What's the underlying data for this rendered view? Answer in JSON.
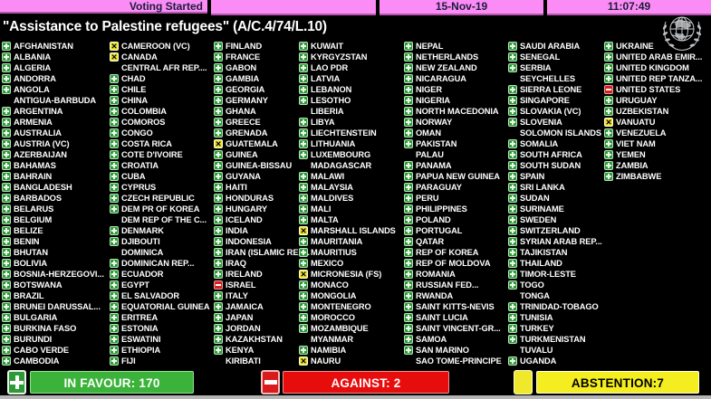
{
  "header": {
    "status": "Voting Started",
    "date": "15-Nov-19",
    "time": "11:07:49"
  },
  "title": "\"Assistance to Palestine refugees\" (A/C.4/74/L.10)",
  "icons": {
    "abstain_glyph": "✕"
  },
  "summary": {
    "in_favour_label": "IN FAVOUR: 170",
    "against_label": "AGAINST: 2",
    "abstention_label": "ABSTENTION:7",
    "in_favour_count": 170,
    "against_count": 2,
    "abstention_count": 7,
    "colors": {
      "favour": "#3bb33b",
      "against": "#e80d0d",
      "abstain": "#f4ee20",
      "header_pink": "#fb8cf5"
    }
  },
  "vote_codes": {
    "Y": "in favour",
    "N": "against",
    "A": "abstention",
    "-": "no vote"
  },
  "columns": [
    [
      {
        "name": "AFGHANISTAN",
        "vote": "Y"
      },
      {
        "name": "ALBANIA",
        "vote": "Y"
      },
      {
        "name": "ALGERIA",
        "vote": "Y"
      },
      {
        "name": "ANDORRA",
        "vote": "Y"
      },
      {
        "name": "ANGOLA",
        "vote": "Y"
      },
      {
        "name": "ANTIGUA-BARBUDA",
        "vote": "-"
      },
      {
        "name": "ARGENTINA",
        "vote": "Y"
      },
      {
        "name": "ARMENIA",
        "vote": "Y"
      },
      {
        "name": "AUSTRALIA",
        "vote": "Y"
      },
      {
        "name": "AUSTRIA (VC)",
        "vote": "Y"
      },
      {
        "name": "AZERBAIJAN",
        "vote": "Y"
      },
      {
        "name": "BAHAMAS",
        "vote": "Y"
      },
      {
        "name": "BAHRAIN",
        "vote": "Y"
      },
      {
        "name": "BANGLADESH",
        "vote": "Y"
      },
      {
        "name": "BARBADOS",
        "vote": "Y"
      },
      {
        "name": "BELARUS",
        "vote": "Y"
      },
      {
        "name": "BELGIUM",
        "vote": "Y"
      },
      {
        "name": "BELIZE",
        "vote": "Y"
      },
      {
        "name": "BENIN",
        "vote": "Y"
      },
      {
        "name": "BHUTAN",
        "vote": "Y"
      },
      {
        "name": "BOLIVIA",
        "vote": "Y"
      },
      {
        "name": "BOSNIA-HERZEGOVI...",
        "vote": "Y"
      },
      {
        "name": "BOTSWANA",
        "vote": "Y"
      },
      {
        "name": "BRAZIL",
        "vote": "Y"
      },
      {
        "name": "BRUNEI DARUSSAL...",
        "vote": "Y"
      },
      {
        "name": "BULGARIA",
        "vote": "Y"
      },
      {
        "name": "BURKINA FASO",
        "vote": "Y"
      },
      {
        "name": "BURUNDI",
        "vote": "Y"
      },
      {
        "name": "CABO VERDE",
        "vote": "Y"
      },
      {
        "name": "CAMBODIA",
        "vote": "Y"
      }
    ],
    [
      {
        "name": "CAMEROON (VC)",
        "vote": "A"
      },
      {
        "name": "CANADA",
        "vote": "A"
      },
      {
        "name": "CENTRAL AFR REP....",
        "vote": "-"
      },
      {
        "name": "CHAD",
        "vote": "Y"
      },
      {
        "name": "CHILE",
        "vote": "Y"
      },
      {
        "name": "CHINA",
        "vote": "Y"
      },
      {
        "name": "COLOMBIA",
        "vote": "Y"
      },
      {
        "name": "COMOROS",
        "vote": "Y"
      },
      {
        "name": "CONGO",
        "vote": "Y"
      },
      {
        "name": "COSTA RICA",
        "vote": "Y"
      },
      {
        "name": "COTE D'IVOIRE",
        "vote": "Y"
      },
      {
        "name": "CROATIA",
        "vote": "Y"
      },
      {
        "name": "CUBA",
        "vote": "Y"
      },
      {
        "name": "CYPRUS",
        "vote": "Y"
      },
      {
        "name": "CZECH REPUBLIC",
        "vote": "Y"
      },
      {
        "name": "DEM PR OF KOREA",
        "vote": "Y"
      },
      {
        "name": "DEM REP OF THE C...",
        "vote": "-"
      },
      {
        "name": "DENMARK",
        "vote": "Y"
      },
      {
        "name": "DJIBOUTI",
        "vote": "Y"
      },
      {
        "name": "DOMINICA",
        "vote": "-"
      },
      {
        "name": "DOMINICAN REP...",
        "vote": "Y"
      },
      {
        "name": "ECUADOR",
        "vote": "Y"
      },
      {
        "name": "EGYPT",
        "vote": "Y"
      },
      {
        "name": "EL SALVADOR",
        "vote": "Y"
      },
      {
        "name": "EQUATORIAL GUINEA",
        "vote": "Y"
      },
      {
        "name": "ERITREA",
        "vote": "Y"
      },
      {
        "name": "ESTONIA",
        "vote": "Y"
      },
      {
        "name": "ESWATINI",
        "vote": "Y"
      },
      {
        "name": "ETHIOPIA",
        "vote": "Y"
      },
      {
        "name": "FIJI",
        "vote": "Y"
      }
    ],
    [
      {
        "name": "FINLAND",
        "vote": "Y"
      },
      {
        "name": "FRANCE",
        "vote": "Y"
      },
      {
        "name": "GABON",
        "vote": "Y"
      },
      {
        "name": "GAMBIA",
        "vote": "Y"
      },
      {
        "name": "GEORGIA",
        "vote": "Y"
      },
      {
        "name": "GERMANY",
        "vote": "Y"
      },
      {
        "name": "GHANA",
        "vote": "Y"
      },
      {
        "name": "GREECE",
        "vote": "Y"
      },
      {
        "name": "GRENADA",
        "vote": "Y"
      },
      {
        "name": "GUATEMALA",
        "vote": "A"
      },
      {
        "name": "GUINEA",
        "vote": "Y"
      },
      {
        "name": "GUINEA-BISSAU",
        "vote": "Y"
      },
      {
        "name": "GUYANA",
        "vote": "Y"
      },
      {
        "name": "HAITI",
        "vote": "Y"
      },
      {
        "name": "HONDURAS",
        "vote": "Y"
      },
      {
        "name": "HUNGARY",
        "vote": "Y"
      },
      {
        "name": "ICELAND",
        "vote": "Y"
      },
      {
        "name": "INDIA",
        "vote": "Y"
      },
      {
        "name": "INDONESIA",
        "vote": "Y"
      },
      {
        "name": "IRAN (ISLAMIC REP...",
        "vote": "Y"
      },
      {
        "name": "IRAQ",
        "vote": "Y"
      },
      {
        "name": "IRELAND",
        "vote": "Y"
      },
      {
        "name": "ISRAEL",
        "vote": "N"
      },
      {
        "name": "ITALY",
        "vote": "Y"
      },
      {
        "name": "JAMAICA",
        "vote": "Y"
      },
      {
        "name": "JAPAN",
        "vote": "Y"
      },
      {
        "name": "JORDAN",
        "vote": "Y"
      },
      {
        "name": "KAZAKHSTAN",
        "vote": "Y"
      },
      {
        "name": "KENYA",
        "vote": "Y"
      },
      {
        "name": "KIRIBATI",
        "vote": "-"
      }
    ],
    [
      {
        "name": "KUWAIT",
        "vote": "Y"
      },
      {
        "name": "KYRGYZSTAN",
        "vote": "Y"
      },
      {
        "name": "LAO PDR",
        "vote": "Y"
      },
      {
        "name": "LATVIA",
        "vote": "Y"
      },
      {
        "name": "LEBANON",
        "vote": "Y"
      },
      {
        "name": "LESOTHO",
        "vote": "Y"
      },
      {
        "name": "LIBERIA",
        "vote": "-"
      },
      {
        "name": "LIBYA",
        "vote": "Y"
      },
      {
        "name": "LIECHTENSTEIN",
        "vote": "Y"
      },
      {
        "name": "LITHUANIA",
        "vote": "Y"
      },
      {
        "name": "LUXEMBOURG",
        "vote": "Y"
      },
      {
        "name": "MADAGASCAR",
        "vote": "-"
      },
      {
        "name": "MALAWI",
        "vote": "Y"
      },
      {
        "name": "MALAYSIA",
        "vote": "Y"
      },
      {
        "name": "MALDIVES",
        "vote": "Y"
      },
      {
        "name": "MALI",
        "vote": "Y"
      },
      {
        "name": "MALTA",
        "vote": "Y"
      },
      {
        "name": "MARSHALL ISLANDS",
        "vote": "A"
      },
      {
        "name": "MAURITANIA",
        "vote": "Y"
      },
      {
        "name": "MAURITIUS",
        "vote": "Y"
      },
      {
        "name": "MEXICO",
        "vote": "Y"
      },
      {
        "name": "MICRONESIA (FS)",
        "vote": "A"
      },
      {
        "name": "MONACO",
        "vote": "Y"
      },
      {
        "name": "MONGOLIA",
        "vote": "Y"
      },
      {
        "name": "MONTENEGRO",
        "vote": "Y"
      },
      {
        "name": "MOROCCO",
        "vote": "Y"
      },
      {
        "name": "MOZAMBIQUE",
        "vote": "Y"
      },
      {
        "name": "MYANMAR",
        "vote": "-"
      },
      {
        "name": "NAMIBIA",
        "vote": "Y"
      },
      {
        "name": "NAURU",
        "vote": "A"
      }
    ],
    [
      {
        "name": "NEPAL",
        "vote": "Y"
      },
      {
        "name": "NETHERLANDS",
        "vote": "Y"
      },
      {
        "name": "NEW ZEALAND",
        "vote": "Y"
      },
      {
        "name": "NICARAGUA",
        "vote": "Y"
      },
      {
        "name": "NIGER",
        "vote": "Y"
      },
      {
        "name": "NIGERIA",
        "vote": "Y"
      },
      {
        "name": "NORTH MACEDONIA",
        "vote": "Y"
      },
      {
        "name": "NORWAY",
        "vote": "Y"
      },
      {
        "name": "OMAN",
        "vote": "Y"
      },
      {
        "name": "PAKISTAN",
        "vote": "Y"
      },
      {
        "name": "PALAU",
        "vote": "-"
      },
      {
        "name": "PANAMA",
        "vote": "Y"
      },
      {
        "name": "PAPUA NEW GUINEA",
        "vote": "Y"
      },
      {
        "name": "PARAGUAY",
        "vote": "Y"
      },
      {
        "name": "PERU",
        "vote": "Y"
      },
      {
        "name": "PHILIPPINES",
        "vote": "Y"
      },
      {
        "name": "POLAND",
        "vote": "Y"
      },
      {
        "name": "PORTUGAL",
        "vote": "Y"
      },
      {
        "name": "QATAR",
        "vote": "Y"
      },
      {
        "name": "REP OF KOREA",
        "vote": "Y"
      },
      {
        "name": "REP OF MOLDOVA",
        "vote": "Y"
      },
      {
        "name": "ROMANIA",
        "vote": "Y"
      },
      {
        "name": "RUSSIAN FED...",
        "vote": "Y"
      },
      {
        "name": "RWANDA",
        "vote": "Y"
      },
      {
        "name": "SAINT KITTS-NEVIS",
        "vote": "Y"
      },
      {
        "name": "SAINT LUCIA",
        "vote": "Y"
      },
      {
        "name": "SAINT VINCENT-GR...",
        "vote": "Y"
      },
      {
        "name": "SAMOA",
        "vote": "Y"
      },
      {
        "name": "SAN MARINO",
        "vote": "Y"
      },
      {
        "name": "SAO TOME-PRINCIPE",
        "vote": "-"
      }
    ],
    [
      {
        "name": "SAUDI ARABIA",
        "vote": "Y"
      },
      {
        "name": "SENEGAL",
        "vote": "Y"
      },
      {
        "name": "SERBIA",
        "vote": "Y"
      },
      {
        "name": "SEYCHELLES",
        "vote": "-"
      },
      {
        "name": "SIERRA LEONE",
        "vote": "Y"
      },
      {
        "name": "SINGAPORE",
        "vote": "Y"
      },
      {
        "name": "SLOVAKIA (VC)",
        "vote": "Y"
      },
      {
        "name": "SLOVENIA",
        "vote": "Y"
      },
      {
        "name": "SOLOMON ISLANDS",
        "vote": "-"
      },
      {
        "name": "SOMALIA",
        "vote": "Y"
      },
      {
        "name": "SOUTH AFRICA",
        "vote": "Y"
      },
      {
        "name": "SOUTH SUDAN",
        "vote": "Y"
      },
      {
        "name": "SPAIN",
        "vote": "Y"
      },
      {
        "name": "SRI LANKA",
        "vote": "Y"
      },
      {
        "name": "SUDAN",
        "vote": "Y"
      },
      {
        "name": "SURINAME",
        "vote": "Y"
      },
      {
        "name": "SWEDEN",
        "vote": "Y"
      },
      {
        "name": "SWITZERLAND",
        "vote": "Y"
      },
      {
        "name": "SYRIAN ARAB REP...",
        "vote": "Y"
      },
      {
        "name": "TAJIKISTAN",
        "vote": "Y"
      },
      {
        "name": "THAILAND",
        "vote": "Y"
      },
      {
        "name": "TIMOR-LESTE",
        "vote": "Y"
      },
      {
        "name": "TOGO",
        "vote": "Y"
      },
      {
        "name": "TONGA",
        "vote": "-"
      },
      {
        "name": "TRINIDAD-TOBAGO",
        "vote": "Y"
      },
      {
        "name": "TUNISIA",
        "vote": "Y"
      },
      {
        "name": "TURKEY",
        "vote": "Y"
      },
      {
        "name": "TURKMENISTAN",
        "vote": "Y"
      },
      {
        "name": "TUVALU",
        "vote": "-"
      },
      {
        "name": "UGANDA",
        "vote": "Y"
      }
    ],
    [
      {
        "name": "UKRAINE",
        "vote": "Y"
      },
      {
        "name": "UNITED ARAB EMIR...",
        "vote": "Y"
      },
      {
        "name": "UNITED KINGDOM",
        "vote": "Y"
      },
      {
        "name": "UNITED REP TANZA...",
        "vote": "Y"
      },
      {
        "name": "UNITED STATES",
        "vote": "N"
      },
      {
        "name": "URUGUAY",
        "vote": "Y"
      },
      {
        "name": "UZBEKISTAN",
        "vote": "Y"
      },
      {
        "name": "VANUATU",
        "vote": "A"
      },
      {
        "name": "VENEZUELA",
        "vote": "Y"
      },
      {
        "name": "VIET NAM",
        "vote": "Y"
      },
      {
        "name": "YEMEN",
        "vote": "Y"
      },
      {
        "name": "ZAMBIA",
        "vote": "Y"
      },
      {
        "name": "ZIMBABWE",
        "vote": "Y"
      }
    ]
  ]
}
